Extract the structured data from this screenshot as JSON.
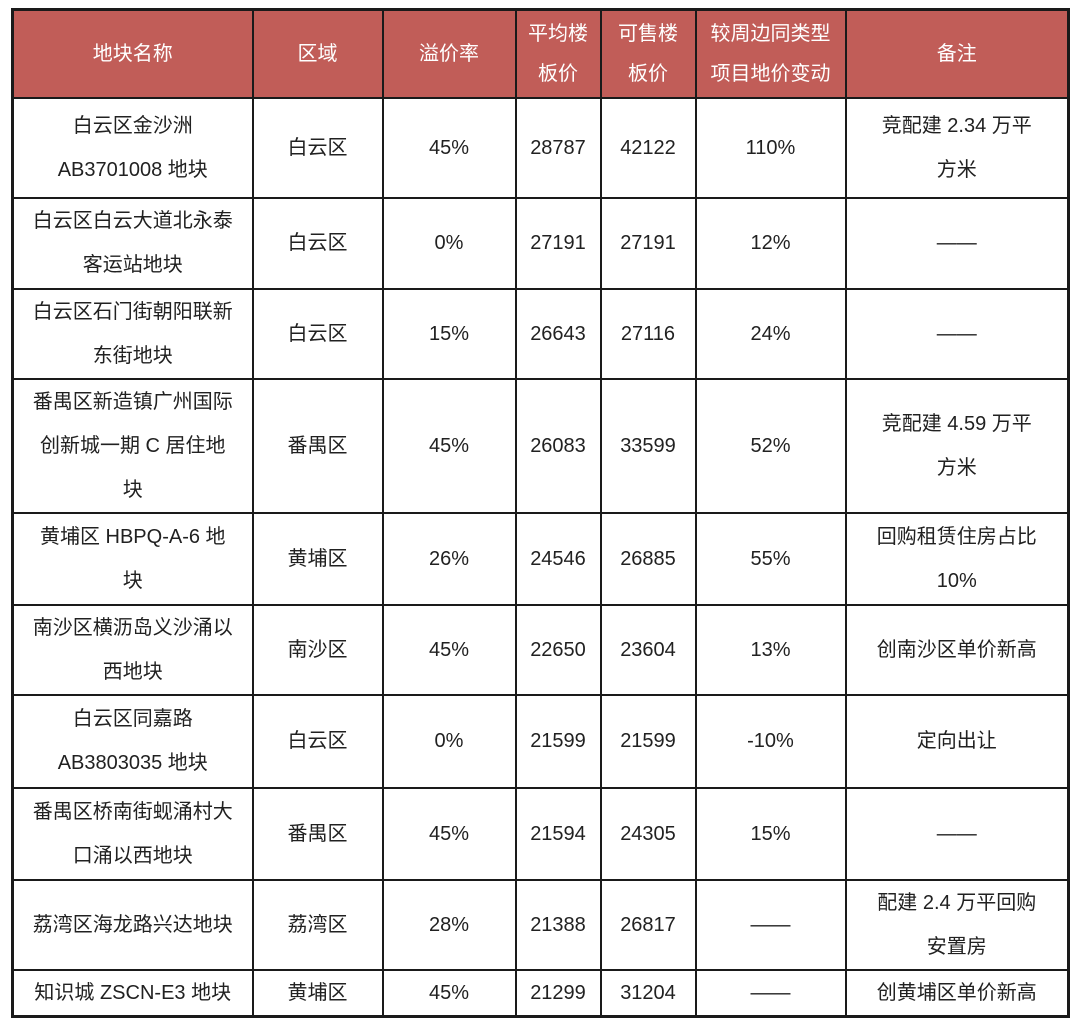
{
  "table": {
    "columns": [
      {
        "key": "parcel_name",
        "label": "地块名称"
      },
      {
        "key": "district",
        "label": "区域"
      },
      {
        "key": "premium_rate",
        "label": "溢价率"
      },
      {
        "key": "avg_floor_price",
        "label": "平均楼板价"
      },
      {
        "key": "sellable_floor_price",
        "label": "可售楼板价"
      },
      {
        "key": "price_change_vs_nearby",
        "label": "较周边同类型项目地价变动"
      },
      {
        "key": "remark",
        "label": "备注"
      }
    ],
    "rows": [
      {
        "cells": [
          "白云区金沙洲 AB3701008 地块",
          "白云区",
          "45%",
          "28787",
          "42122",
          "110%",
          "竞配建 2.34 万平方米"
        ]
      },
      {
        "cells": [
          "白云区白云大道北永泰客运站地块",
          "白云区",
          "0%",
          "27191",
          "27191",
          "12%",
          "——"
        ]
      },
      {
        "cells": [
          "白云区石门街朝阳联新东街地块",
          "白云区",
          "15%",
          "26643",
          "27116",
          "24%",
          "——"
        ]
      },
      {
        "cells": [
          "番禺区新造镇广州国际创新城一期 C 居住地块",
          "番禺区",
          "45%",
          "26083",
          "33599",
          "52%",
          "竞配建 4.59 万平方米"
        ]
      },
      {
        "cells": [
          "黄埔区 HBPQ-A-6 地块",
          "黄埔区",
          "26%",
          "24546",
          "26885",
          "55%",
          "回购租赁住房占比 10%"
        ]
      },
      {
        "cells": [
          "南沙区横沥岛义沙涌以西地块",
          "南沙区",
          "45%",
          "22650",
          "23604",
          "13%",
          "创南沙区单价新高"
        ]
      },
      {
        "cells": [
          "白云区同嘉路 AB3803035 地块",
          "白云区",
          "0%",
          "21599",
          "21599",
          "-10%",
          "定向出让"
        ]
      },
      {
        "cells": [
          "番禺区桥南街蚬涌村大口涌以西地块",
          "番禺区",
          "45%",
          "21594",
          "24305",
          "15%",
          "——"
        ]
      },
      {
        "cells": [
          "荔湾区海龙路兴达地块",
          "荔湾区",
          "28%",
          "21388",
          "26817",
          "——",
          "配建 2.4 万平回购安置房"
        ]
      },
      {
        "cells": [
          "知识城 ZSCN-E3 地块",
          "黄埔区",
          "45%",
          "21299",
          "31204",
          "——",
          "创黄埔区单价新高"
        ]
      }
    ]
  },
  "chart_data": {
    "type": "table",
    "columns": [
      "地块名称",
      "区域",
      "溢价率",
      "平均楼板价",
      "可售楼板价",
      "较周边同类型项目地价变动",
      "备注"
    ],
    "rows": [
      [
        "白云区金沙洲 AB3701008 地块",
        "白云区",
        "45%",
        28787,
        42122,
        "110%",
        "竞配建 2.34 万平方米"
      ],
      [
        "白云区白云大道北永泰客运站地块",
        "白云区",
        "0%",
        27191,
        27191,
        "12%",
        "——"
      ],
      [
        "白云区石门街朝阳联新东街地块",
        "白云区",
        "15%",
        26643,
        27116,
        "24%",
        "——"
      ],
      [
        "番禺区新造镇广州国际创新城一期 C 居住地块",
        "番禺区",
        "45%",
        26083,
        33599,
        "52%",
        "竞配建 4.59 万平方米"
      ],
      [
        "黄埔区 HBPQ-A-6 地块",
        "黄埔区",
        "26%",
        24546,
        26885,
        "55%",
        "回购租赁住房占比 10%"
      ],
      [
        "南沙区横沥岛义沙涌以西地块",
        "南沙区",
        "45%",
        22650,
        23604,
        "13%",
        "创南沙区单价新高"
      ],
      [
        "白云区同嘉路 AB3803035 地块",
        "白云区",
        "0%",
        21599,
        21599,
        "-10%",
        "定向出让"
      ],
      [
        "番禺区桥南街蚬涌村大口涌以西地块",
        "番禺区",
        "45%",
        21594,
        24305,
        "15%",
        "——"
      ],
      [
        "荔湾区海龙路兴达地块",
        "荔湾区",
        "28%",
        21388,
        26817,
        "——",
        "配建 2.4 万平回购安置房"
      ],
      [
        "知识城 ZSCN-E3 地块",
        "黄埔区",
        "45%",
        21299,
        31204,
        "——",
        "创黄埔区单价新高"
      ]
    ],
    "legend": false,
    "grid": true
  },
  "colors": {
    "header_bg": "#c15d58",
    "header_text": "#ffffff",
    "border": "#1a1a1a",
    "body_text": "#212121",
    "background": "#ffffff"
  }
}
